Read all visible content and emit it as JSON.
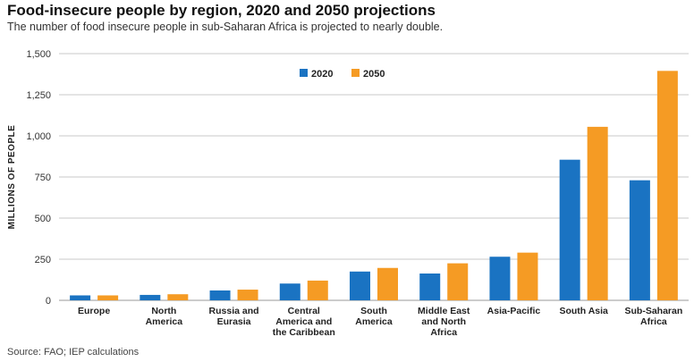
{
  "header": {
    "title": "Food-insecure people by region, 2020 and 2050 projections",
    "subtitle": "The number of food insecure people in sub-Saharan Africa is projected to nearly double."
  },
  "footer": {
    "source": "Source: FAO; IEP calculations"
  },
  "colors": {
    "series_2020": "#1a73c2",
    "series_2050": "#f59b24",
    "grid": "#c8c8c8",
    "axis_text": "#333333"
  },
  "chart_data": {
    "type": "bar",
    "title": "Food-insecure people by region, 2020 and 2050 projections",
    "subtitle": "The number of food insecure people in sub-Saharan Africa is projected to nearly double.",
    "xlabel": "",
    "ylabel": "MILLIONS OF PEOPLE",
    "ylim": [
      0,
      1500
    ],
    "yticks": [
      0,
      250,
      500,
      750,
      1000,
      1250,
      1500
    ],
    "ytick_labels": [
      "0",
      "250",
      "500",
      "750",
      "1,000",
      "1,250",
      "1,500"
    ],
    "grid": true,
    "legend_position": "top-center",
    "categories": [
      [
        "Europe"
      ],
      [
        "North",
        "America"
      ],
      [
        "Russia and",
        "Eurasia"
      ],
      [
        "Central",
        "America and",
        "the Caribbean"
      ],
      [
        "South",
        "America"
      ],
      [
        "Middle East",
        "and North",
        "Africa"
      ],
      [
        "Asia-Pacific"
      ],
      [
        "South Asia"
      ],
      [
        "Sub-Saharan",
        "Africa"
      ]
    ],
    "series": [
      {
        "name": "2020",
        "values": [
          30,
          33,
          60,
          102,
          175,
          163,
          265,
          855,
          730
        ]
      },
      {
        "name": "2050",
        "values": [
          30,
          37,
          65,
          120,
          197,
          225,
          290,
          1055,
          1395
        ]
      }
    ]
  }
}
